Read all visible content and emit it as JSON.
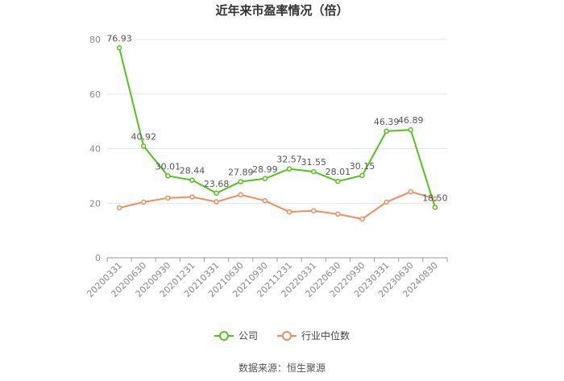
{
  "chart_data": {
    "type": "line",
    "title": "近年来市盈率情况（倍）",
    "categories": [
      "20200331",
      "20200630",
      "20200930",
      "20201231",
      "20210331",
      "20210630",
      "20210930",
      "20211231",
      "20220331",
      "20220630",
      "20220930",
      "20230331",
      "20230630",
      "20240830"
    ],
    "series": [
      {
        "name": "公司",
        "color": "#52c41a",
        "values": [
          76.93,
          40.92,
          30.01,
          28.44,
          23.68,
          27.89,
          28.99,
          32.57,
          31.55,
          28.01,
          30.15,
          46.39,
          46.89,
          18.5
        ],
        "labels": [
          "76.93",
          "40.92",
          "30.01",
          "28.44",
          "23.68",
          "27.89",
          "28.99",
          "32.57",
          "31.55",
          "28.01",
          "30.15",
          "46.39",
          "46.89",
          "18.50"
        ]
      },
      {
        "name": "行业中位数",
        "color": "#f58c5c",
        "values": [
          18.3,
          20.4,
          21.9,
          22.3,
          20.5,
          23.1,
          20.9,
          16.8,
          17.2,
          16.0,
          14.2,
          20.4,
          24.2,
          21.6
        ]
      }
    ],
    "ylim": [
      0,
      80
    ],
    "yticks": [
      "0",
      "20",
      "40",
      "60",
      "80"
    ],
    "grid": true,
    "legend_position": "bottom"
  },
  "source": "数据来源：恒生聚源"
}
